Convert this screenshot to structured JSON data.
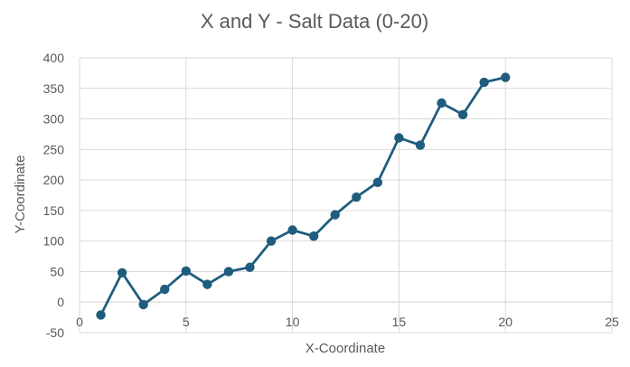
{
  "chart_data": {
    "type": "scatter",
    "title": "X and Y - Salt Data (0-20)",
    "xlabel": "X-Coordinate",
    "ylabel": "Y-Coordinate",
    "xlim": [
      0,
      25
    ],
    "ylim": [
      -50,
      400
    ],
    "xticks": [
      0,
      5,
      10,
      15,
      20,
      25
    ],
    "yticks": [
      -50,
      0,
      50,
      100,
      150,
      200,
      250,
      300,
      350,
      400
    ],
    "grid": true,
    "legend": "none",
    "series": [
      {
        "color": "#1f5c7d",
        "line": true,
        "markers": true,
        "x": [
          1,
          2,
          3,
          4,
          5,
          6,
          7,
          8,
          9,
          10,
          11,
          12,
          13,
          14,
          15,
          16,
          17,
          18,
          19,
          20
        ],
        "y": [
          -21,
          48,
          -4,
          21,
          51,
          29,
          50,
          57,
          100,
          118,
          108,
          143,
          172,
          196,
          269,
          257,
          326,
          307,
          360,
          368
        ]
      }
    ]
  }
}
